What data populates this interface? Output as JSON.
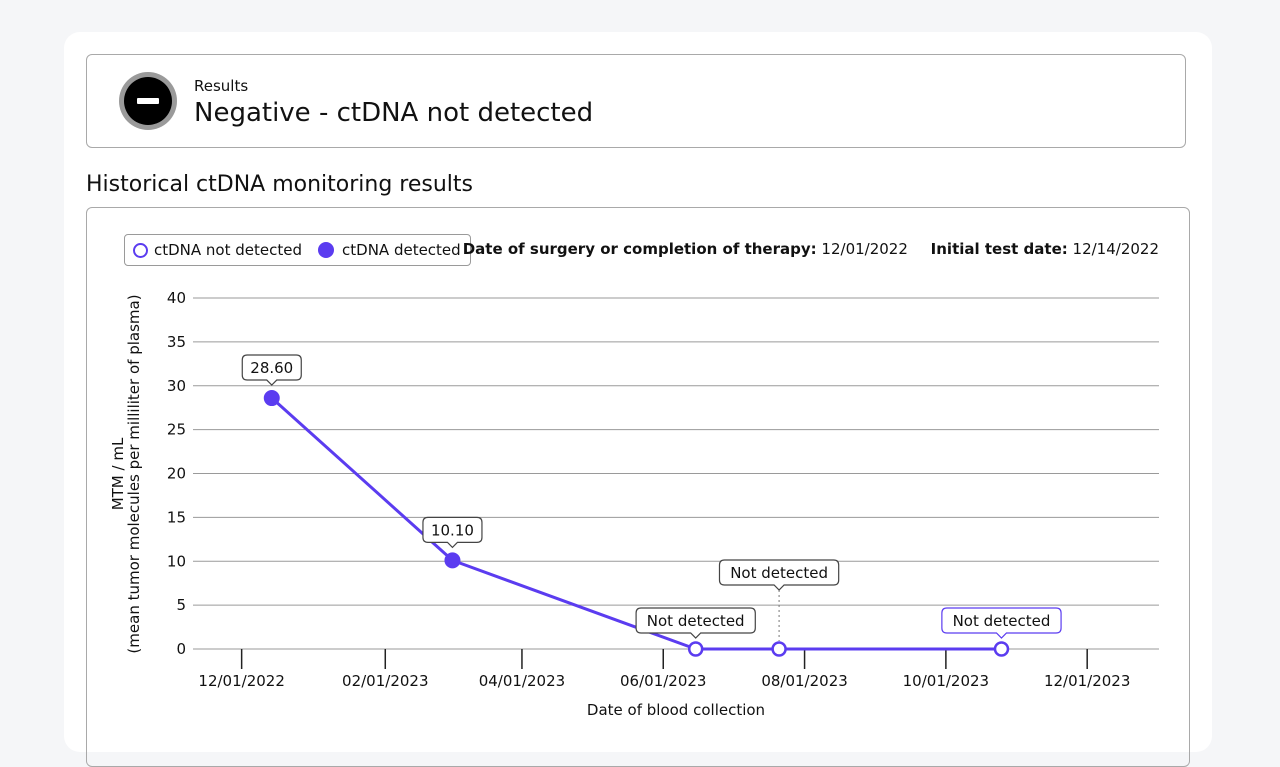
{
  "result": {
    "label": "Results",
    "status": "Negative - ctDNA not detected",
    "icon": "minus-circle-icon"
  },
  "section_title": "Historical ctDNA monitoring results",
  "legend": {
    "not_detected": "ctDNA not detected",
    "detected": "ctDNA detected"
  },
  "meta": {
    "surgery_label": "Date of surgery or completion of therapy:",
    "surgery_date": "12/01/2022",
    "initial_label": "Initial test date:",
    "initial_date": "12/14/2022"
  },
  "colors": {
    "accent": "#5b3cf0",
    "grid": "#9a9a9a",
    "border": "#a9a9a9"
  },
  "chart_data": {
    "type": "line",
    "title": "",
    "xlabel": "Date of blood collection",
    "ylabel_line1": "MTM / mL",
    "ylabel_line2": "(mean tumor molecules per milliliter of plasma)",
    "ylim": [
      0,
      40
    ],
    "yticks": [
      0,
      5,
      10,
      15,
      20,
      25,
      30,
      35,
      40
    ],
    "xlim": [
      "2022-11-10",
      "2024-01-01"
    ],
    "xticks": [
      {
        "date": "2022-12-01",
        "label": "12/01/2022"
      },
      {
        "date": "2023-02-01",
        "label": "02/01/2023"
      },
      {
        "date": "2023-04-01",
        "label": "04/01/2023"
      },
      {
        "date": "2023-06-01",
        "label": "06/01/2023"
      },
      {
        "date": "2023-08-01",
        "label": "08/01/2023"
      },
      {
        "date": "2023-10-01",
        "label": "10/01/2023"
      },
      {
        "date": "2023-12-01",
        "label": "12/01/2023"
      }
    ],
    "grid": true,
    "series": [
      {
        "points": [
          {
            "date": "2022-12-14",
            "value": 28.6,
            "detected": true,
            "label": "28.60"
          },
          {
            "date": "2023-03-02",
            "value": 10.1,
            "detected": true,
            "label": "10.10"
          },
          {
            "date": "2023-06-15",
            "value": 0,
            "detected": false,
            "label": "Not detected"
          },
          {
            "date": "2023-07-21",
            "value": 0,
            "detected": false,
            "label": "Not detected"
          },
          {
            "date": "2023-10-25",
            "value": 0,
            "detected": false,
            "label": "Not detected",
            "highlight": true
          }
        ]
      }
    ]
  }
}
